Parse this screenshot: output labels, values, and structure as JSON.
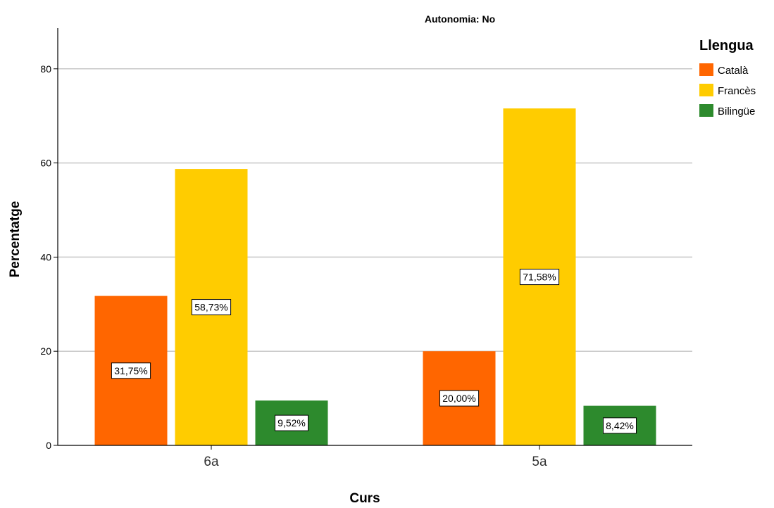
{
  "chart_data": {
    "type": "bar",
    "title": "Autonomia: No",
    "xlabel": "Curs",
    "ylabel": "Percentatge",
    "categories": [
      "6a",
      "5a"
    ],
    "ylim": [
      0,
      88
    ],
    "yticks": [
      0,
      20,
      40,
      60,
      80
    ],
    "grid": true,
    "legend": {
      "title": "Llengua",
      "placement": "top-right"
    },
    "series": [
      {
        "name": "Català",
        "color": "#ff6600",
        "values": [
          31.75,
          20.0
        ],
        "labels": [
          "31,75%",
          "20,00%"
        ]
      },
      {
        "name": "Francès",
        "color": "#ffcc00",
        "values": [
          58.73,
          71.58
        ],
        "labels": [
          "58,73%",
          "71,58%"
        ]
      },
      {
        "name": "Bilingüe",
        "color": "#2d8a2d",
        "values": [
          9.52,
          8.42
        ],
        "labels": [
          "9,52%",
          "8,42%"
        ]
      }
    ]
  }
}
